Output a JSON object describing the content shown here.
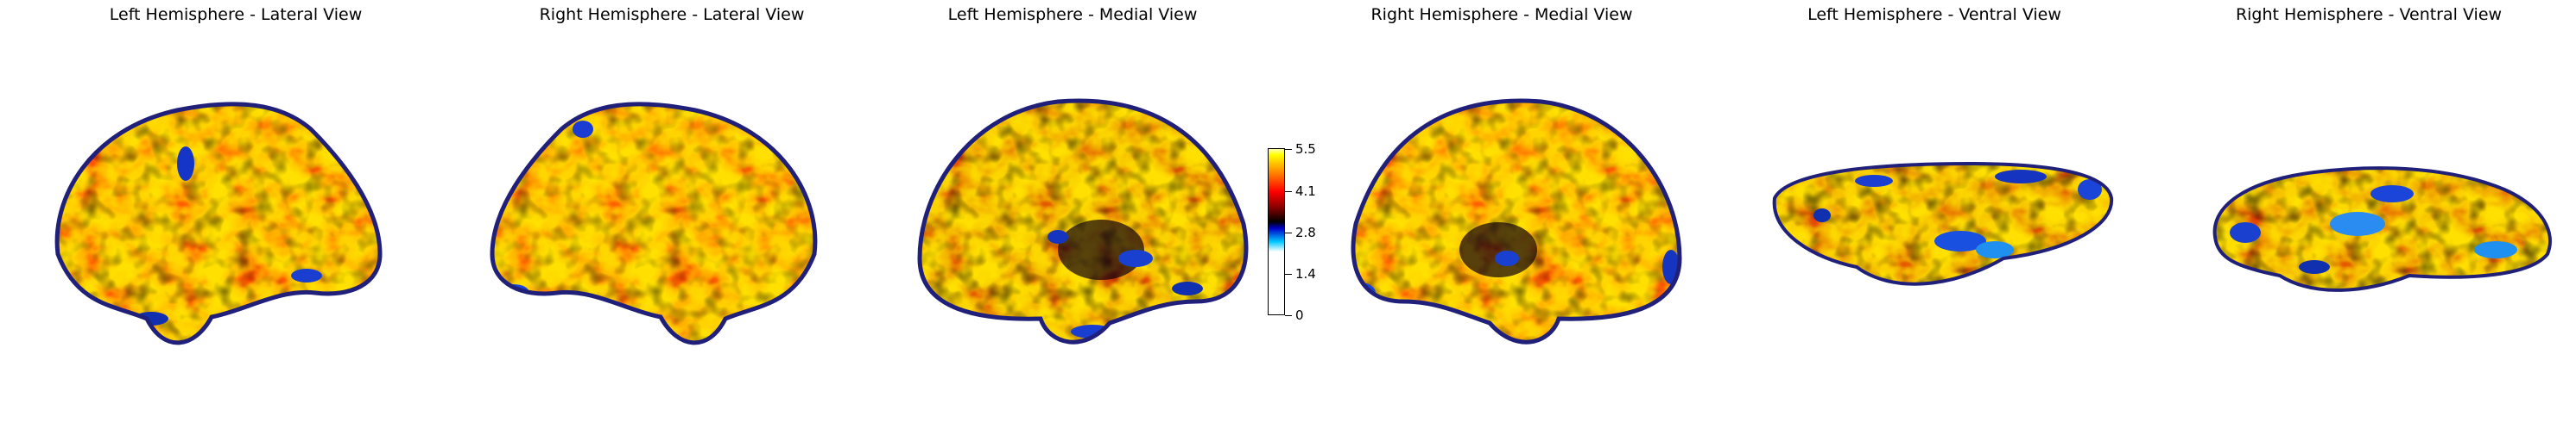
{
  "views": [
    {
      "id": "lh-lateral",
      "title": "Left Hemisphere - Lateral View",
      "hemisphere": "left",
      "view": "lateral"
    },
    {
      "id": "rh-lateral",
      "title": "Right Hemisphere - Lateral View",
      "hemisphere": "right",
      "view": "lateral"
    },
    {
      "id": "lh-medial",
      "title": "Left Hemisphere - Medial View",
      "hemisphere": "left",
      "view": "medial"
    },
    {
      "id": "rh-medial",
      "title": "Right Hemisphere - Medial View",
      "hemisphere": "right",
      "view": "medial"
    },
    {
      "id": "lh-ventral",
      "title": "Left Hemisphere - Ventral View",
      "hemisphere": "left",
      "view": "ventral"
    },
    {
      "id": "rh-ventral",
      "title": "Right Hemisphere - Ventral View",
      "hemisphere": "right",
      "view": "ventral"
    }
  ],
  "colorbar": {
    "range": [
      0,
      5.5
    ],
    "ticks": [
      "5.5",
      "4.1",
      "2.8",
      "1.4",
      "0"
    ],
    "colormap": [
      "#ffffff",
      "#00c8ff",
      "#0000c8",
      "#000000",
      "#800000",
      "#ff0000",
      "#ff8c00",
      "#ffff00",
      "#ffffd0"
    ]
  }
}
